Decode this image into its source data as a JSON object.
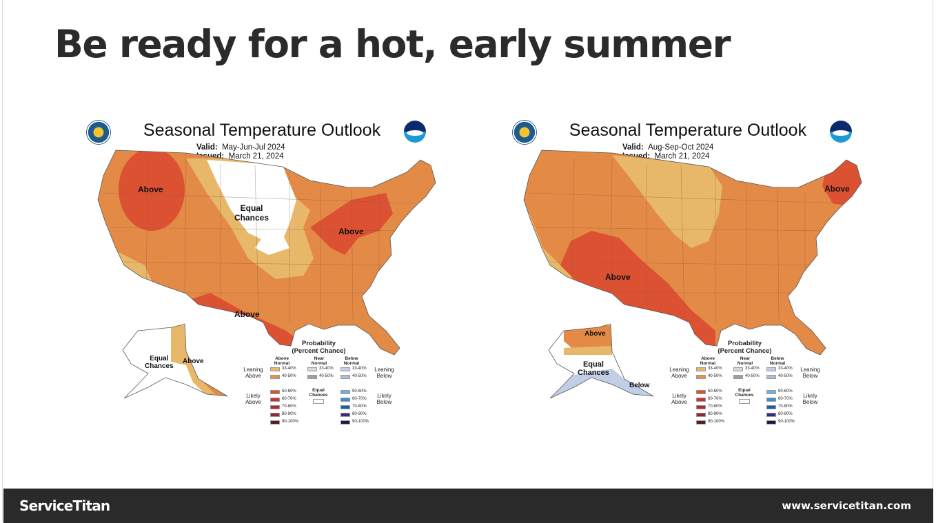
{
  "slide": {
    "title": "Be ready for a hot, early summer"
  },
  "maps": [
    {
      "heading": "Seasonal Temperature Outlook",
      "valid_label": "Valid:",
      "valid_value": "May-Jun-Jul 2024",
      "issued_label": "Issued:",
      "issued_value": "March 21, 2024",
      "regions": {
        "northwest_above": "Above",
        "equal_chances_line1": "Equal",
        "equal_chances_line2": "Chances",
        "great_lakes_above": "Above",
        "south_above": "Above",
        "alaska_equal_line1": "Equal",
        "alaska_equal_line2": "Chances",
        "alaska_above": "Above"
      }
    },
    {
      "heading": "Seasonal Temperature Outlook",
      "valid_label": "Valid:",
      "valid_value": "Aug-Sep-Oct 2024",
      "issued_label": "Issued:",
      "issued_value": "March 21, 2024",
      "regions": {
        "southwest_above": "Above",
        "new_england_above": "Above",
        "alaska_above": "Above",
        "alaska_equal_line1": "Equal",
        "alaska_equal_line2": "Chances",
        "alaska_below": "Below"
      }
    }
  ],
  "legend": {
    "title_line1": "Probability",
    "title_line2": "(Percent Chance)",
    "above_head_1": "Above",
    "above_head_2": "Normal",
    "near_head_1": "Near",
    "near_head_2": "Normal",
    "below_head_1": "Below",
    "below_head_2": "Normal",
    "leaning_above_1": "Leaning",
    "leaning_above_2": "Above",
    "likely_above_1": "Likely",
    "likely_above_2": "Above",
    "leaning_below_1": "Leaning",
    "leaning_below_2": "Below",
    "likely_below_1": "Likely",
    "likely_below_2": "Below",
    "equal_chances_1": "Equal",
    "equal_chances_2": "Chances",
    "above_bins": [
      "33-40%",
      "40-50%",
      "50-60%",
      "60-70%",
      "70-80%",
      "80-90%",
      "90-100%"
    ],
    "near_bins": [
      "33-40%",
      "40-50%"
    ],
    "below_bins": [
      "33-40%",
      "40-50%",
      "50-60%",
      "60-70%",
      "70-80%",
      "80-90%",
      "90-100%"
    ],
    "above_colors": [
      "#e8b86a",
      "#e8924a",
      "#dc5132",
      "#c8342c",
      "#b12a35",
      "#8a2a2a",
      "#5a1a1a"
    ],
    "near_colors": [
      "#d8d8d8",
      "#a0a0a0"
    ],
    "below_colors": [
      "#c2cde6",
      "#a6bedf",
      "#7fa9d6",
      "#3a8fd0",
      "#1262a8",
      "#3a2a7a",
      "#1a1a4a"
    ],
    "equal_color": "#ffffff"
  },
  "footer": {
    "brand": "ServiceTitan",
    "url": "www.servicetitan.com"
  }
}
